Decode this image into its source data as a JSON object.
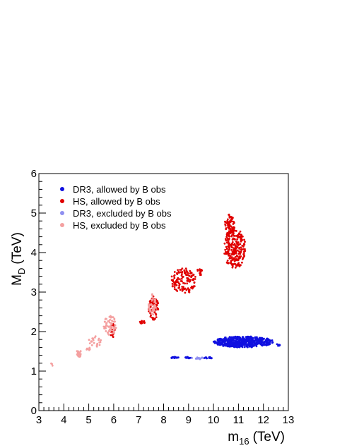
{
  "chart_data": {
    "type": "scatter",
    "xlabel": "m",
    "xlabel_sub": "16",
    "xlabel_unit": "(TeV)",
    "ylabel": "M",
    "ylabel_sub": "D",
    "ylabel_unit": "(TeV)",
    "xlim": [
      3,
      13
    ],
    "ylim": [
      0,
      6
    ],
    "x_ticks": [
      "3",
      "4",
      "5",
      "6",
      "7",
      "8",
      "9",
      "10",
      "11",
      "12",
      "13"
    ],
    "y_ticks": [
      "0",
      "1",
      "2",
      "3",
      "4",
      "5",
      "6"
    ],
    "grid": false,
    "legend_position": "top-left",
    "series": [
      {
        "name": "DR3, allowed by B obs",
        "color": "#1010e0",
        "clusters": [
          {
            "x": [
              10.0,
              12.4
            ],
            "y": [
              1.6,
              1.88
            ],
            "n": 520
          },
          {
            "x": [
              8.3,
              8.6
            ],
            "y": [
              1.32,
              1.36
            ],
            "n": 18
          },
          {
            "x": [
              8.85,
              9.1
            ],
            "y": [
              1.32,
              1.36
            ],
            "n": 15
          },
          {
            "x": [
              9.6,
              9.95
            ],
            "y": [
              1.31,
              1.36
            ],
            "n": 14
          },
          {
            "x": [
              12.4,
              12.7
            ],
            "y": [
              1.63,
              1.68
            ],
            "n": 6
          }
        ]
      },
      {
        "name": "HS, allowed by B obs",
        "color": "#e00000",
        "clusters": [
          {
            "x": [
              10.4,
              11.3
            ],
            "y": [
              3.6,
              4.6
            ],
            "n": 230
          },
          {
            "x": [
              10.45,
              10.85
            ],
            "y": [
              4.4,
              4.97
            ],
            "n": 70
          },
          {
            "x": [
              8.3,
              9.3
            ],
            "y": [
              2.95,
              3.62
            ],
            "n": 130
          },
          {
            "x": [
              9.3,
              9.6
            ],
            "y": [
              3.4,
              3.6
            ],
            "n": 12
          },
          {
            "x": [
              7.4,
              7.8
            ],
            "y": [
              2.3,
              2.9
            ],
            "n": 70
          },
          {
            "x": [
              7.05,
              7.25
            ],
            "y": [
              2.2,
              2.28
            ],
            "n": 12
          },
          {
            "x": [
              5.85,
              6.05
            ],
            "y": [
              1.85,
              2.2
            ],
            "n": 25
          }
        ]
      },
      {
        "name": "DR3, excluded by B obs",
        "color": "#8f8ff0",
        "clusters": [
          {
            "x": [
              9.1,
              9.7
            ],
            "y": [
              1.3,
              1.35
            ],
            "n": 14
          }
        ]
      },
      {
        "name": "HS, excluded by B obs",
        "color": "#f4a0a0",
        "clusters": [
          {
            "x": [
              5.6,
              6.1
            ],
            "y": [
              1.9,
              2.4
            ],
            "n": 60
          },
          {
            "x": [
              7.4,
              7.7
            ],
            "y": [
              2.4,
              2.95
            ],
            "n": 40
          },
          {
            "x": [
              4.5,
              4.7
            ],
            "y": [
              1.35,
              1.55
            ],
            "n": 25
          },
          {
            "x": [
              5.0,
              5.5
            ],
            "y": [
              1.6,
              1.9
            ],
            "n": 25
          },
          {
            "x": [
              4.9,
              5.05
            ],
            "y": [
              1.52,
              1.62
            ],
            "n": 8
          },
          {
            "x": [
              3.45,
              3.55
            ],
            "y": [
              1.1,
              1.2
            ],
            "n": 3
          }
        ]
      }
    ]
  }
}
